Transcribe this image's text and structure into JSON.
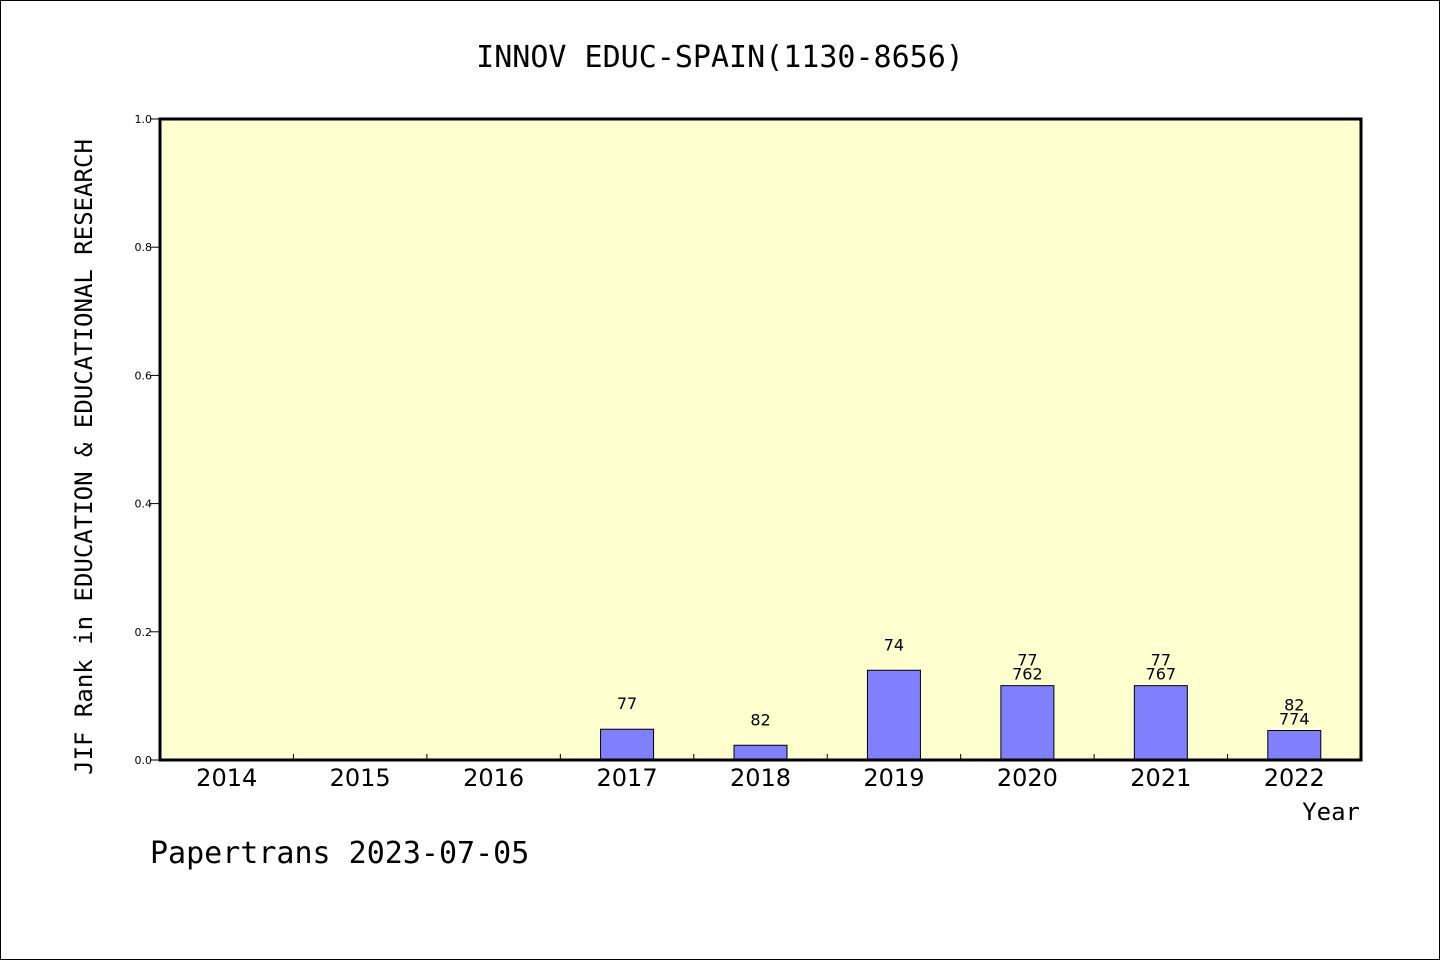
{
  "chart_data": {
    "type": "bar",
    "title": "INNOV EDUC-SPAIN(1130-8656)",
    "xlabel": "Year",
    "ylabel": "JIF Rank in EDUCATION & EDUCATIONAL RESEARCH",
    "categories": [
      "2014",
      "2015",
      "2016",
      "2017",
      "2018",
      "2019",
      "2020",
      "2021",
      "2022"
    ],
    "values": [
      null,
      null,
      null,
      0.048,
      0.023,
      0.14,
      0.116,
      0.116,
      0.046
    ],
    "bar_labels": [
      [],
      [],
      [],
      [
        "77"
      ],
      [
        "82"
      ],
      [
        "74"
      ],
      [
        "77",
        "762"
      ],
      [
        "77",
        "767"
      ],
      [
        "82",
        "774"
      ]
    ],
    "yticks": [
      "0.0",
      "0.2",
      "0.4",
      "0.6",
      "0.8",
      "1.0"
    ],
    "ylim": [
      0,
      1.0
    ],
    "grid": false,
    "colors": {
      "plot_bg": "#ffffd0",
      "bar_fill": "#8080ff",
      "bar_stroke": "#000000"
    }
  },
  "footer": "Papertrans 2023-07-05"
}
